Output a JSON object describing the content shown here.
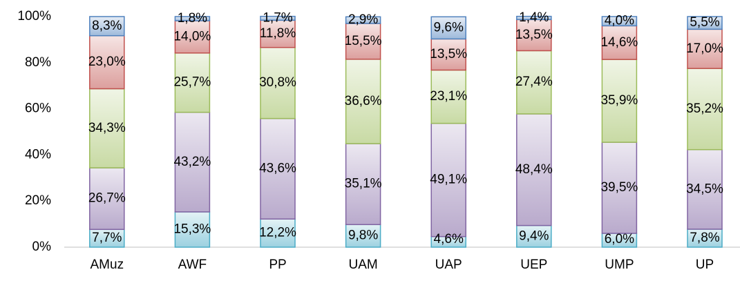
{
  "chart_data": {
    "type": "stacked_bar_100",
    "categories": [
      "AMuz",
      "AWF",
      "PP",
      "UAM",
      "UAP",
      "UEP",
      "UMP",
      "UP"
    ],
    "series": [
      {
        "color": "#4bacc6",
        "values": [
          7.7,
          15.3,
          12.2,
          9.8,
          4.6,
          9.4,
          6.0,
          7.8
        ],
        "value_labels": [
          "7,7%",
          "15,3%",
          "12,2%",
          "9,8%",
          "4,6%",
          "9,4%",
          "6,0%",
          "7,8%"
        ]
      },
      {
        "color": "#8064a2",
        "values": [
          26.7,
          43.2,
          43.6,
          35.1,
          49.1,
          48.4,
          39.5,
          34.5
        ],
        "value_labels": [
          "26,7%",
          "43,2%",
          "43,6%",
          "35,1%",
          "49,1%",
          "48,4%",
          "39,5%",
          "34,5%"
        ]
      },
      {
        "color": "#9bbb59",
        "values": [
          34.3,
          25.7,
          30.8,
          36.6,
          23.1,
          27.4,
          35.9,
          35.2
        ],
        "value_labels": [
          "34,3%",
          "25,7%",
          "30,8%",
          "36,6%",
          "23,1%",
          "27,4%",
          "35,9%",
          "35,2%"
        ]
      },
      {
        "color": "#c0504d",
        "values": [
          23.0,
          14.0,
          11.8,
          15.5,
          13.5,
          13.5,
          14.6,
          17.0
        ],
        "value_labels": [
          "23,0%",
          "14,0%",
          "11,8%",
          "15,5%",
          "13,5%",
          "13,5%",
          "14,6%",
          "17,0%"
        ]
      },
      {
        "color": "#4f81bd",
        "values": [
          8.3,
          1.8,
          1.7,
          2.9,
          9.6,
          1.4,
          4.0,
          5.5
        ],
        "value_labels": [
          "8,3%",
          "1,8%",
          "1,7%",
          "2,9%",
          "9,6%",
          "1,4%",
          "4,0%",
          "5,5%"
        ]
      }
    ],
    "ylim": [
      0,
      100
    ],
    "yticks": [
      {
        "value": 0,
        "label": "0%"
      },
      {
        "value": 20,
        "label": "20%"
      },
      {
        "value": 40,
        "label": "40%"
      },
      {
        "value": 60,
        "label": "60%"
      },
      {
        "value": 80,
        "label": "80%"
      },
      {
        "value": 100,
        "label": "100%"
      }
    ],
    "grid": false
  }
}
